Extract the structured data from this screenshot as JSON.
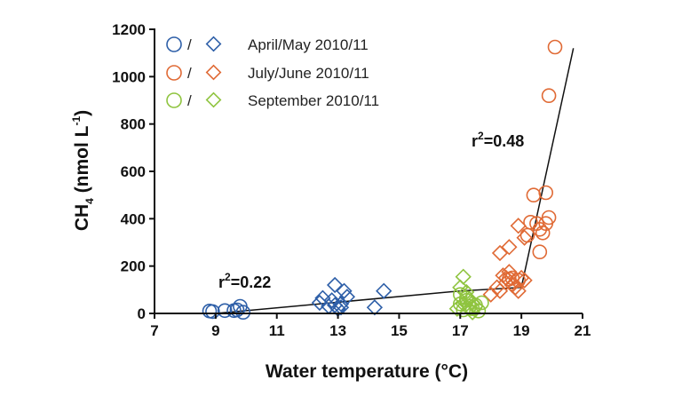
{
  "chart_data": {
    "type": "scatter",
    "xlabel": "Water temperature (°C)",
    "ylabel": {
      "base": "CH",
      "sub": "4",
      "mid": " (nmol L",
      "sup": "-1",
      "end": ")"
    },
    "xlim": [
      7,
      21
    ],
    "ylim": [
      0,
      1200
    ],
    "xticks": [
      7,
      9,
      11,
      13,
      15,
      17,
      19,
      21
    ],
    "yticks": [
      0,
      200,
      400,
      600,
      800,
      1000,
      1200
    ],
    "legend_position": "top-left",
    "colors": {
      "blue": "#2e5fa8",
      "orange": "#e06a35",
      "green": "#8fc43f",
      "black": "#111111"
    },
    "legend": [
      {
        "label": "April/May 2010/11",
        "color": "#2e5fa8",
        "sep": "/"
      },
      {
        "label": "July/June 2010/11",
        "color": "#e06a35",
        "sep": "/"
      },
      {
        "label": "September 2010/11",
        "color": "#8fc43f",
        "sep": "/"
      }
    ],
    "annotations": [
      {
        "base": "r",
        "sup": "2",
        "rest": "=0.22",
        "x": 10.2,
        "y": 135
      },
      {
        "base": "r",
        "sup": "2",
        "rest": "=0.48",
        "x": 18.5,
        "y": 690
      }
    ],
    "fit_line": [
      [
        9.0,
        0
      ],
      [
        17.0,
        95
      ],
      [
        19.0,
        110
      ],
      [
        20.7,
        1120
      ]
    ],
    "series": [
      {
        "season": "April/May",
        "marker": "circle",
        "color": "#2e5fa8",
        "points": [
          [
            8.8,
            10
          ],
          [
            8.9,
            8
          ],
          [
            9.3,
            12
          ],
          [
            9.7,
            15
          ],
          [
            9.8,
            30
          ],
          [
            9.9,
            5
          ],
          [
            9.6,
            12
          ]
        ]
      },
      {
        "season": "April/May",
        "marker": "diamond",
        "color": "#2e5fa8",
        "points": [
          [
            12.4,
            45
          ],
          [
            12.5,
            65
          ],
          [
            12.7,
            30
          ],
          [
            12.8,
            55
          ],
          [
            12.9,
            120
          ],
          [
            13.0,
            20
          ],
          [
            13.1,
            40
          ],
          [
            13.2,
            95
          ],
          [
            13.3,
            70
          ],
          [
            13.1,
            25
          ],
          [
            12.9,
            35
          ],
          [
            14.2,
            25
          ],
          [
            14.5,
            95
          ]
        ]
      },
      {
        "season": "July/June",
        "marker": "circle",
        "color": "#e06a35",
        "points": [
          [
            18.6,
            145
          ],
          [
            18.7,
            150
          ],
          [
            19.2,
            330
          ],
          [
            19.3,
            385
          ],
          [
            19.4,
            500
          ],
          [
            19.5,
            380
          ],
          [
            19.6,
            355
          ],
          [
            19.6,
            260
          ],
          [
            19.7,
            340
          ],
          [
            19.8,
            380
          ],
          [
            19.8,
            510
          ],
          [
            19.9,
            405
          ],
          [
            19.9,
            920
          ],
          [
            20.1,
            1125
          ],
          [
            18.9,
            140
          ]
        ]
      },
      {
        "season": "July/June",
        "marker": "diamond",
        "color": "#e06a35",
        "points": [
          [
            18.0,
            80
          ],
          [
            18.2,
            110
          ],
          [
            18.3,
            95
          ],
          [
            18.3,
            255
          ],
          [
            18.5,
            150
          ],
          [
            18.5,
            130
          ],
          [
            18.6,
            175
          ],
          [
            18.6,
            280
          ],
          [
            18.7,
            120
          ],
          [
            18.8,
            110
          ],
          [
            18.9,
            370
          ],
          [
            18.9,
            95
          ],
          [
            19.0,
            150
          ],
          [
            19.1,
            140
          ],
          [
            19.1,
            320
          ],
          [
            18.4,
            160
          ]
        ]
      },
      {
        "season": "September",
        "marker": "circle",
        "color": "#8fc43f",
        "points": [
          [
            17.0,
            40
          ],
          [
            17.1,
            15
          ],
          [
            17.2,
            65
          ],
          [
            17.3,
            30
          ],
          [
            17.4,
            20
          ],
          [
            17.5,
            35
          ],
          [
            17.6,
            10
          ],
          [
            17.7,
            45
          ],
          [
            17.2,
            55
          ],
          [
            17.0,
            80
          ]
        ]
      },
      {
        "season": "September",
        "marker": "diamond",
        "color": "#8fc43f",
        "points": [
          [
            16.9,
            20
          ],
          [
            17.0,
            110
          ],
          [
            17.1,
            155
          ],
          [
            17.2,
            90
          ],
          [
            17.3,
            60
          ],
          [
            17.3,
            20
          ],
          [
            17.4,
            5
          ],
          [
            17.5,
            30
          ],
          [
            17.1,
            40
          ],
          [
            17.4,
            45
          ]
        ]
      }
    ]
  }
}
